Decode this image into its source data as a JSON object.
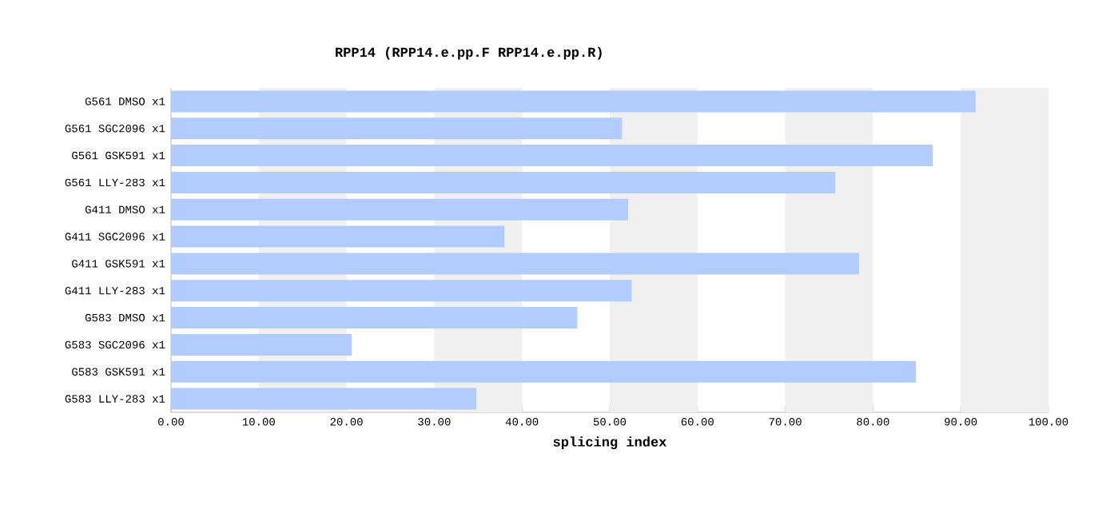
{
  "chart_data": {
    "type": "bar",
    "orientation": "horizontal",
    "title": "RPP14 (RPP14.e.pp.F  RPP14.e.pp.R)",
    "xlabel": "splicing index",
    "categories": [
      "G561 DMSO x1",
      "G561 SGC2096 x1",
      "G561 GSK591 x1",
      "G561 LLY-283 x1",
      "G411 DMSO x1",
      "G411 SGC2096 x1",
      "G411 GSK591 x1",
      "G411 LLY-283 x1",
      "G583 DMSO x1",
      "G583 SGC2096 x1",
      "G583 GSK591 x1",
      "G583 LLY-283 x1"
    ],
    "values": [
      91.7,
      51.4,
      86.8,
      75.7,
      52.1,
      38.0,
      78.4,
      52.5,
      46.3,
      20.6,
      84.9,
      34.8
    ],
    "color": "#b3ccff",
    "xlim": [
      0,
      100
    ],
    "xticks": [
      {
        "value": 0,
        "label": "0.00"
      },
      {
        "value": 10,
        "label": "10.00"
      },
      {
        "value": 20,
        "label": "20.00"
      },
      {
        "value": 30,
        "label": "30.00"
      },
      {
        "value": 40,
        "label": "40.00"
      },
      {
        "value": 50,
        "label": "50.00"
      },
      {
        "value": 60,
        "label": "60.00"
      },
      {
        "value": 70,
        "label": "70.00"
      },
      {
        "value": 80,
        "label": "80.00"
      },
      {
        "value": 90,
        "label": "90.00"
      },
      {
        "value": 100,
        "label": "100.00"
      }
    ],
    "bands": [
      {
        "axis": "x",
        "from": 10,
        "to": 20,
        "color": "#f0f0f0"
      },
      {
        "axis": "x",
        "from": 30,
        "to": 40,
        "color": "#f0f0f0"
      },
      {
        "axis": "x",
        "from": 50,
        "to": 60,
        "color": "#f0f0f0"
      },
      {
        "axis": "x",
        "from": 70,
        "to": 80,
        "color": "#f0f0f0"
      },
      {
        "axis": "x",
        "from": 90,
        "to": 100,
        "color": "#f0f0f0"
      }
    ]
  }
}
